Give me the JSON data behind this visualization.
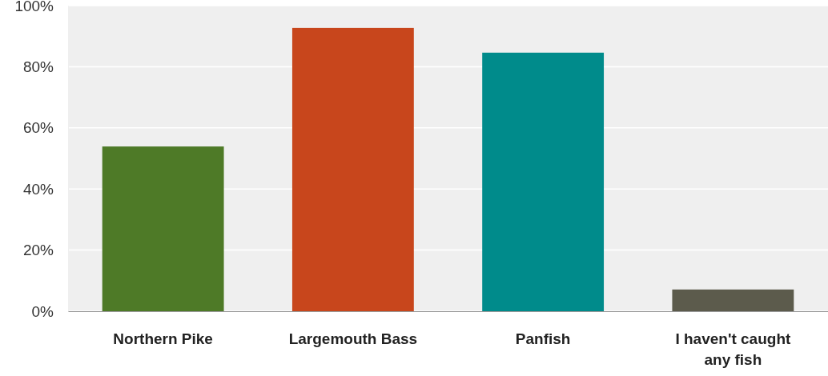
{
  "chart_data": {
    "type": "bar",
    "categories": [
      "Northern Pike",
      "Largemouth Bass",
      "Panfish",
      "I haven't caught any fish"
    ],
    "values": [
      53.9,
      92.7,
      84.6,
      7.1
    ],
    "colors": [
      "#4e7a27",
      "#c8461c",
      "#008b8b",
      "#5c5b4c"
    ],
    "ylim": [
      0,
      100
    ],
    "yticks": [
      {
        "value": 0,
        "label": "0%"
      },
      {
        "value": 20,
        "label": "20%"
      },
      {
        "value": 40,
        "label": "40%"
      },
      {
        "value": 60,
        "label": "60%"
      },
      {
        "value": 80,
        "label": "80%"
      },
      {
        "value": 100,
        "label": "100%"
      }
    ],
    "grid": "y"
  }
}
